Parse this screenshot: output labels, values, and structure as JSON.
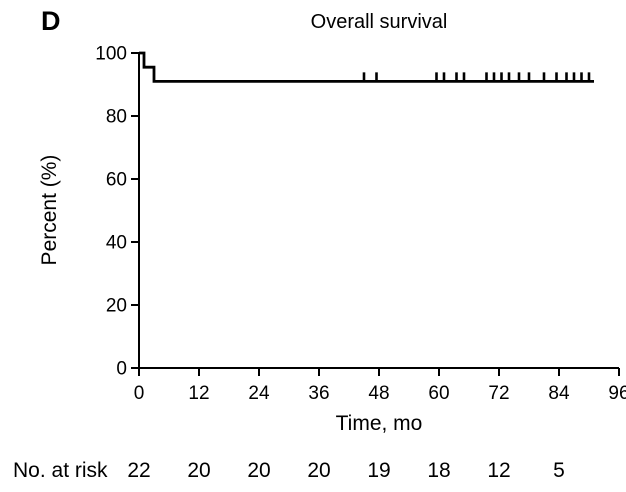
{
  "panel_label": "D",
  "colors": {
    "line": "#000000",
    "background": "#ffffff",
    "text": "#000000"
  },
  "chart_data": {
    "type": "line",
    "subtype": "kaplan-meier-step-curve",
    "title": "Overall survival",
    "xlabel": "Time, mo",
    "ylabel": "Percent (%)",
    "xlim": [
      0,
      96
    ],
    "ylim": [
      0,
      100
    ],
    "x_ticks": [
      0,
      12,
      24,
      36,
      48,
      60,
      72,
      84,
      96
    ],
    "y_ticks": [
      0,
      20,
      40,
      60,
      80,
      100
    ],
    "grid": false,
    "legend": false,
    "series": [
      {
        "name": "Overall survival",
        "steps": [
          {
            "t": 0,
            "pct": 100
          },
          {
            "t": 1,
            "pct": 95.5
          },
          {
            "t": 3,
            "pct": 91
          }
        ],
        "end_t": 91,
        "censor_times": [
          45,
          47.5,
          59.5,
          61,
          63.5,
          65,
          69.5,
          71,
          72.5,
          74,
          76,
          78,
          81,
          83.5,
          85.5,
          87,
          88.5,
          90
        ]
      }
    ],
    "risk_table": {
      "label": "No. at risk",
      "times": [
        0,
        12,
        24,
        36,
        48,
        60,
        72,
        84
      ],
      "counts": [
        22,
        20,
        20,
        20,
        19,
        18,
        12,
        5
      ]
    }
  }
}
